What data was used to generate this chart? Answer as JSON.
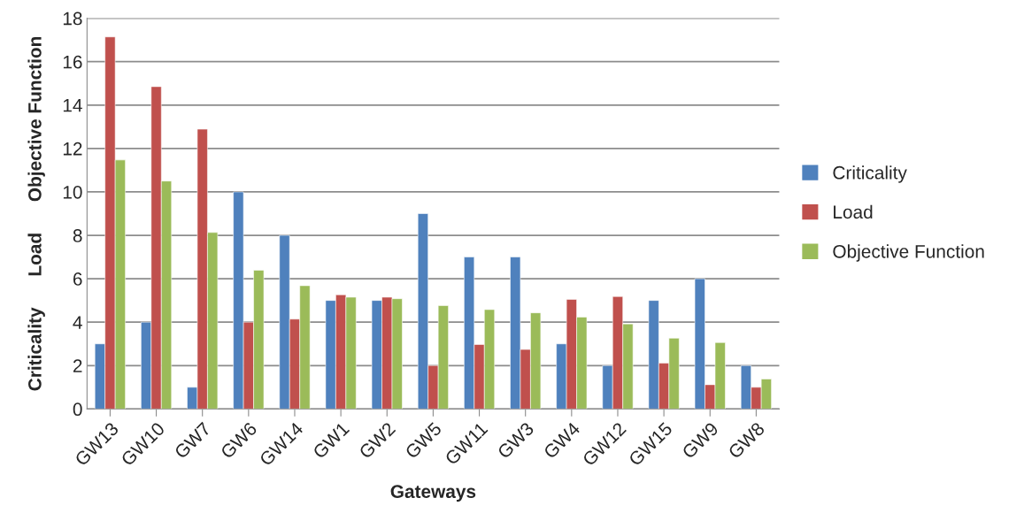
{
  "chart_data": {
    "type": "bar",
    "xlabel": "Gateways",
    "ylabel": "Criticality      Load      Objective Function",
    "categories": [
      "GW13",
      "GW10",
      "GW7",
      "GW6",
      "GW14",
      "GW1",
      "GW2",
      "GW5",
      "GW11",
      "GW3",
      "GW4",
      "GW12",
      "GW15",
      "GW9",
      "GW8"
    ],
    "series": [
      {
        "name": "Criticality",
        "color": "#4f81bd",
        "values": [
          3,
          4,
          1,
          10,
          8,
          5,
          5,
          9,
          7,
          7,
          3,
          2,
          5,
          6,
          2
        ]
      },
      {
        "name": "Load",
        "color": "#c0504d",
        "values": [
          17.14,
          14.85,
          12.89,
          4,
          4.14,
          5.26,
          5.15,
          2,
          2.97,
          2.74,
          5.05,
          5.18,
          2.11,
          1.12,
          1
        ]
      },
      {
        "name": "Objective Function",
        "color": "#9bbb59",
        "values": [
          11.47,
          10.5,
          8.13,
          6.39,
          5.68,
          5.15,
          5.08,
          4.76,
          4.58,
          4.43,
          4.23,
          3.92,
          3.26,
          3.06,
          1.38
        ]
      }
    ],
    "ylim": [
      0,
      18
    ],
    "yticks": [
      0,
      2,
      4,
      6,
      8,
      10,
      12,
      14,
      16,
      18
    ],
    "grid": "y",
    "legend": "right"
  }
}
